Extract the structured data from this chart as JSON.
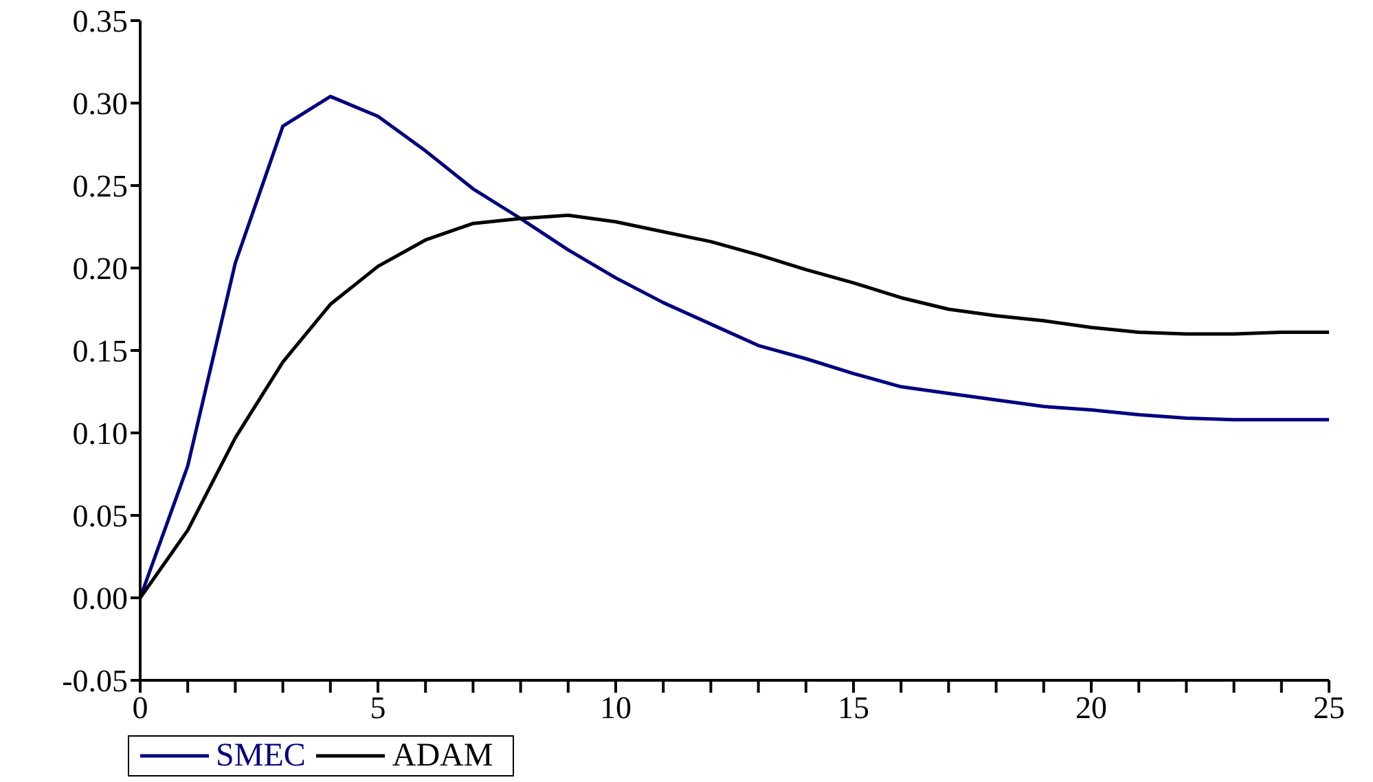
{
  "chart_data": {
    "type": "line",
    "x": [
      0,
      1,
      2,
      3,
      4,
      5,
      6,
      7,
      8,
      9,
      10,
      11,
      12,
      13,
      14,
      15,
      16,
      17,
      18,
      19,
      20,
      21,
      22,
      23,
      24,
      25
    ],
    "series": [
      {
        "name": "SMEC",
        "color": "#000080",
        "values": [
          0,
          0.08,
          0.203,
          0.286,
          0.304,
          0.292,
          0.271,
          0.248,
          0.23,
          0.211,
          0.194,
          0.179,
          0.166,
          0.153,
          0.145,
          0.136,
          0.128,
          0.124,
          0.12,
          0.116,
          0.114,
          0.111,
          0.109,
          0.108,
          0.108,
          0.108
        ]
      },
      {
        "name": "ADAM",
        "color": "#000000",
        "values": [
          0,
          0.041,
          0.097,
          0.143,
          0.178,
          0.201,
          0.217,
          0.227,
          0.23,
          0.232,
          0.228,
          0.222,
          0.216,
          0.208,
          0.199,
          0.191,
          0.182,
          0.175,
          0.171,
          0.168,
          0.164,
          0.161,
          0.16,
          0.16,
          0.161,
          0.161
        ]
      }
    ],
    "xlim": [
      0,
      25
    ],
    "xticks": [
      0,
      {
        "value": 1,
        "label": null
      },
      {
        "value": 2,
        "label": null
      },
      {
        "value": 3,
        "label": null
      },
      {
        "value": 4,
        "label": null
      },
      5,
      {
        "value": 6,
        "label": null
      },
      {
        "value": 7,
        "label": null
      },
      {
        "value": 8,
        "label": null
      },
      {
        "value": 9,
        "label": null
      },
      10,
      {
        "value": 11,
        "label": null
      },
      {
        "value": 12,
        "label": null
      },
      {
        "value": 13,
        "label": null
      },
      {
        "value": 14,
        "label": null
      },
      15,
      {
        "value": 16,
        "label": null
      },
      {
        "value": 17,
        "label": null
      },
      {
        "value": 18,
        "label": null
      },
      {
        "value": 19,
        "label": null
      },
      20,
      {
        "value": 21,
        "label": null
      },
      {
        "value": 22,
        "label": null
      },
      {
        "value": 23,
        "label": null
      },
      {
        "value": 24,
        "label": null
      },
      25
    ],
    "ylim": [
      -0.05,
      0.35
    ],
    "yticks": [
      {
        "value": -0.05,
        "label": "-0.05"
      },
      {
        "value": 0,
        "label": "0.00"
      },
      {
        "value": 0.05,
        "label": "0.05"
      },
      {
        "value": 0.1,
        "label": "0.10"
      },
      {
        "value": 0.15,
        "label": "0.15"
      },
      {
        "value": 0.2,
        "label": "0.20"
      },
      {
        "value": 0.25,
        "label": "0.25"
      },
      {
        "value": 0.3,
        "label": "0.30"
      },
      {
        "value": 0.35,
        "label": "0.35"
      }
    ],
    "legend": "bottom left",
    "marker": "none",
    "line_style": "solid"
  }
}
